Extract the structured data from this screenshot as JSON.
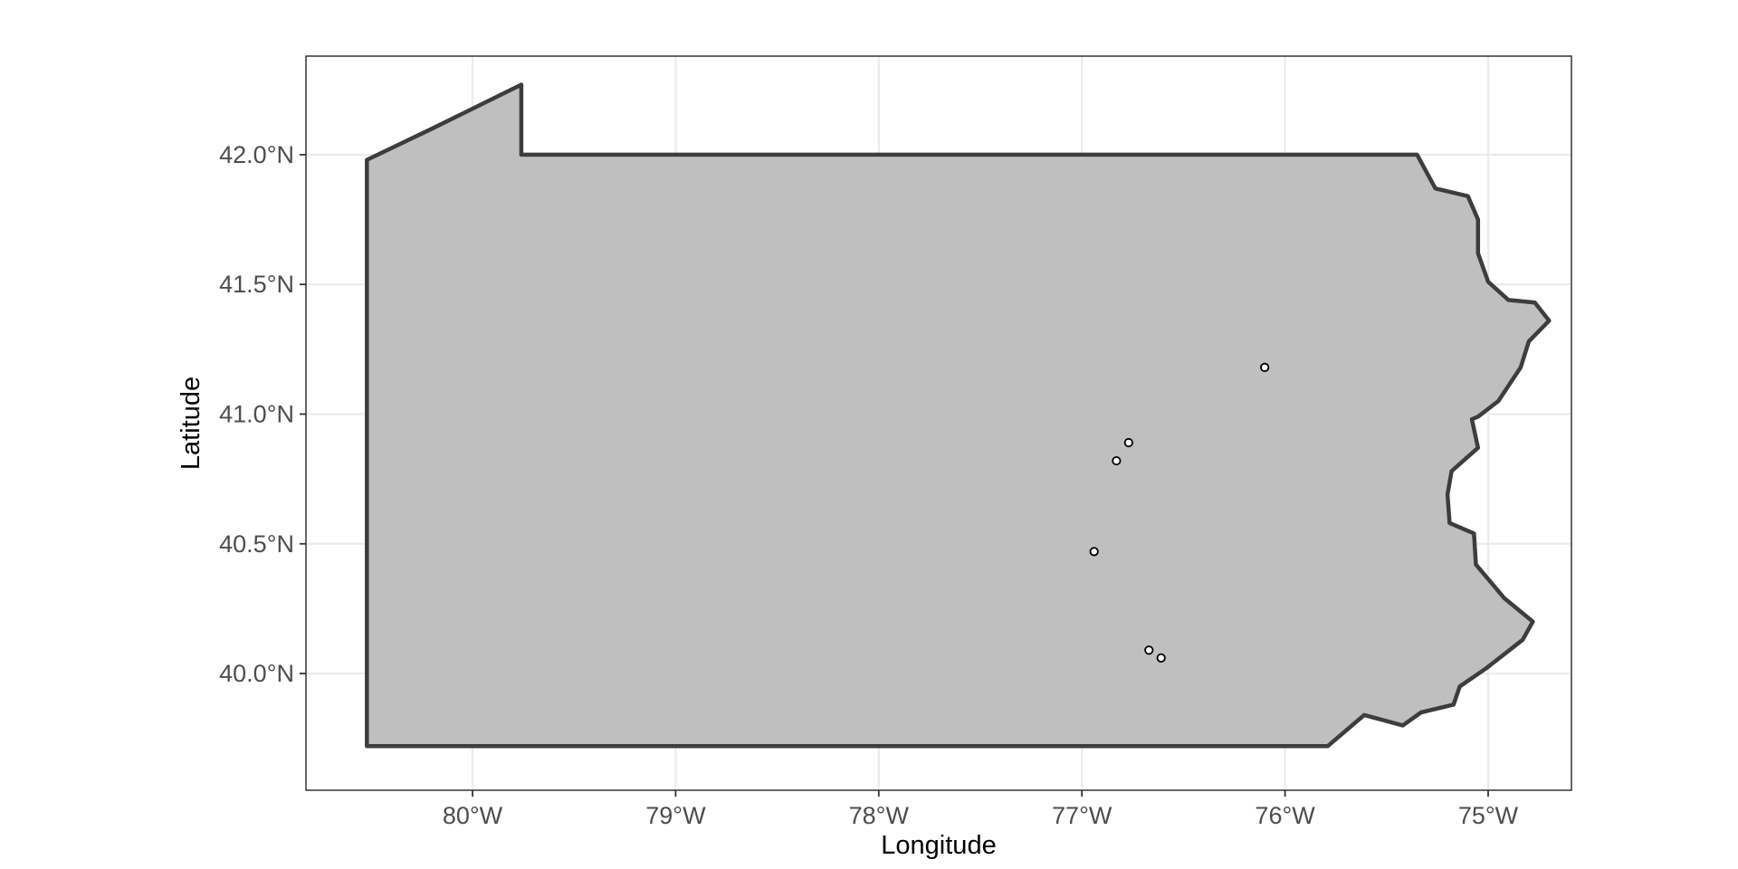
{
  "chart_data": {
    "type": "scatter",
    "title": "",
    "xlabel": "Longitude",
    "ylabel": "Latitude",
    "xlim": [
      -80.82,
      -74.59
    ],
    "ylim": [
      39.55,
      42.38
    ],
    "x_ticks": [
      {
        "value": -80,
        "label": "80°W"
      },
      {
        "value": -79,
        "label": "79°W"
      },
      {
        "value": -78,
        "label": "78°W"
      },
      {
        "value": -77,
        "label": "77°W"
      },
      {
        "value": -76,
        "label": "76°W"
      },
      {
        "value": -75,
        "label": "75°W"
      }
    ],
    "y_ticks": [
      {
        "value": 40.0,
        "label": "40.0°N"
      },
      {
        "value": 40.5,
        "label": "40.5°N"
      },
      {
        "value": 41.0,
        "label": "41.0°N"
      },
      {
        "value": 41.5,
        "label": "41.5°N"
      },
      {
        "value": 42.0,
        "label": "42.0°N"
      }
    ],
    "grid": true,
    "region": {
      "name": "Pennsylvania",
      "fill": "#bfbfbf",
      "stroke": "#3d3d3d",
      "outline": [
        [
          -80.52,
          39.72
        ],
        [
          -80.52,
          41.98
        ],
        [
          -80.2,
          42.1
        ],
        [
          -79.76,
          42.27
        ],
        [
          -79.76,
          42.0
        ],
        [
          -77.0,
          42.0
        ],
        [
          -75.35,
          42.0
        ],
        [
          -75.26,
          41.87
        ],
        [
          -75.1,
          41.84
        ],
        [
          -75.05,
          41.75
        ],
        [
          -75.05,
          41.62
        ],
        [
          -75.0,
          41.51
        ],
        [
          -74.9,
          41.44
        ],
        [
          -74.77,
          41.43
        ],
        [
          -74.7,
          41.36
        ],
        [
          -74.8,
          41.28
        ],
        [
          -74.84,
          41.18
        ],
        [
          -74.95,
          41.05
        ],
        [
          -75.05,
          40.99
        ],
        [
          -75.08,
          40.98
        ],
        [
          -75.05,
          40.87
        ],
        [
          -75.18,
          40.78
        ],
        [
          -75.2,
          40.69
        ],
        [
          -75.19,
          40.58
        ],
        [
          -75.07,
          40.54
        ],
        [
          -75.06,
          40.42
        ],
        [
          -74.92,
          40.29
        ],
        [
          -74.78,
          40.2
        ],
        [
          -74.83,
          40.13
        ],
        [
          -75.01,
          40.02
        ],
        [
          -75.14,
          39.95
        ],
        [
          -75.17,
          39.88
        ],
        [
          -75.33,
          39.85
        ],
        [
          -75.42,
          39.8
        ],
        [
          -75.61,
          39.84
        ],
        [
          -75.79,
          39.72
        ],
        [
          -77.5,
          39.72
        ],
        [
          -79.0,
          39.72
        ],
        [
          -80.52,
          39.72
        ]
      ]
    },
    "points": [
      {
        "x": -76.1,
        "y": 41.18
      },
      {
        "x": -76.77,
        "y": 40.89
      },
      {
        "x": -76.83,
        "y": 40.82
      },
      {
        "x": -76.94,
        "y": 40.47
      },
      {
        "x": -76.67,
        "y": 40.09
      },
      {
        "x": -76.61,
        "y": 40.06
      }
    ],
    "colors": {
      "panel_border": "#333333",
      "grid": "#ebebeb",
      "tick": "#333333",
      "point_stroke": "#000000",
      "point_fill": "#ffffff"
    }
  }
}
